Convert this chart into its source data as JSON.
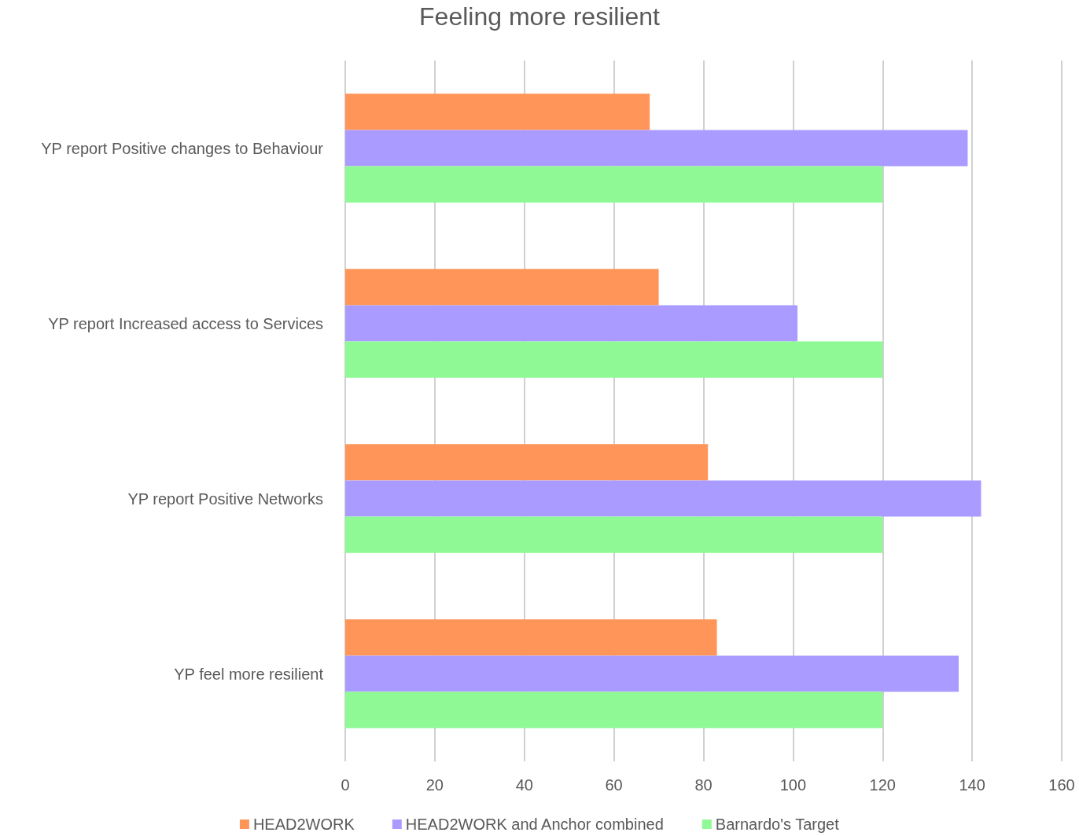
{
  "chart_data": {
    "type": "bar",
    "orientation": "horizontal",
    "title": "Feeling more resilient",
    "categories": [
      "YP report Positive changes to Behaviour",
      "YP report Increased access to Services",
      "YP report Positive Networks",
      "YP feel more resilient"
    ],
    "series": [
      {
        "name": "HEAD2WORK",
        "color": "#ff9559",
        "values": [
          68,
          70,
          81,
          83
        ]
      },
      {
        "name": "HEAD2WORK and Anchor combined",
        "color": "#a99bff",
        "values": [
          139,
          101,
          142,
          137
        ]
      },
      {
        "name": "Barnardo's Target",
        "color": "#8ff995",
        "values": [
          120,
          120,
          120,
          120
        ]
      }
    ],
    "xlim": [
      0,
      160
    ],
    "xticks": [
      0,
      20,
      40,
      60,
      80,
      100,
      120,
      140,
      160
    ],
    "grid": "x",
    "legend": "bottom"
  }
}
